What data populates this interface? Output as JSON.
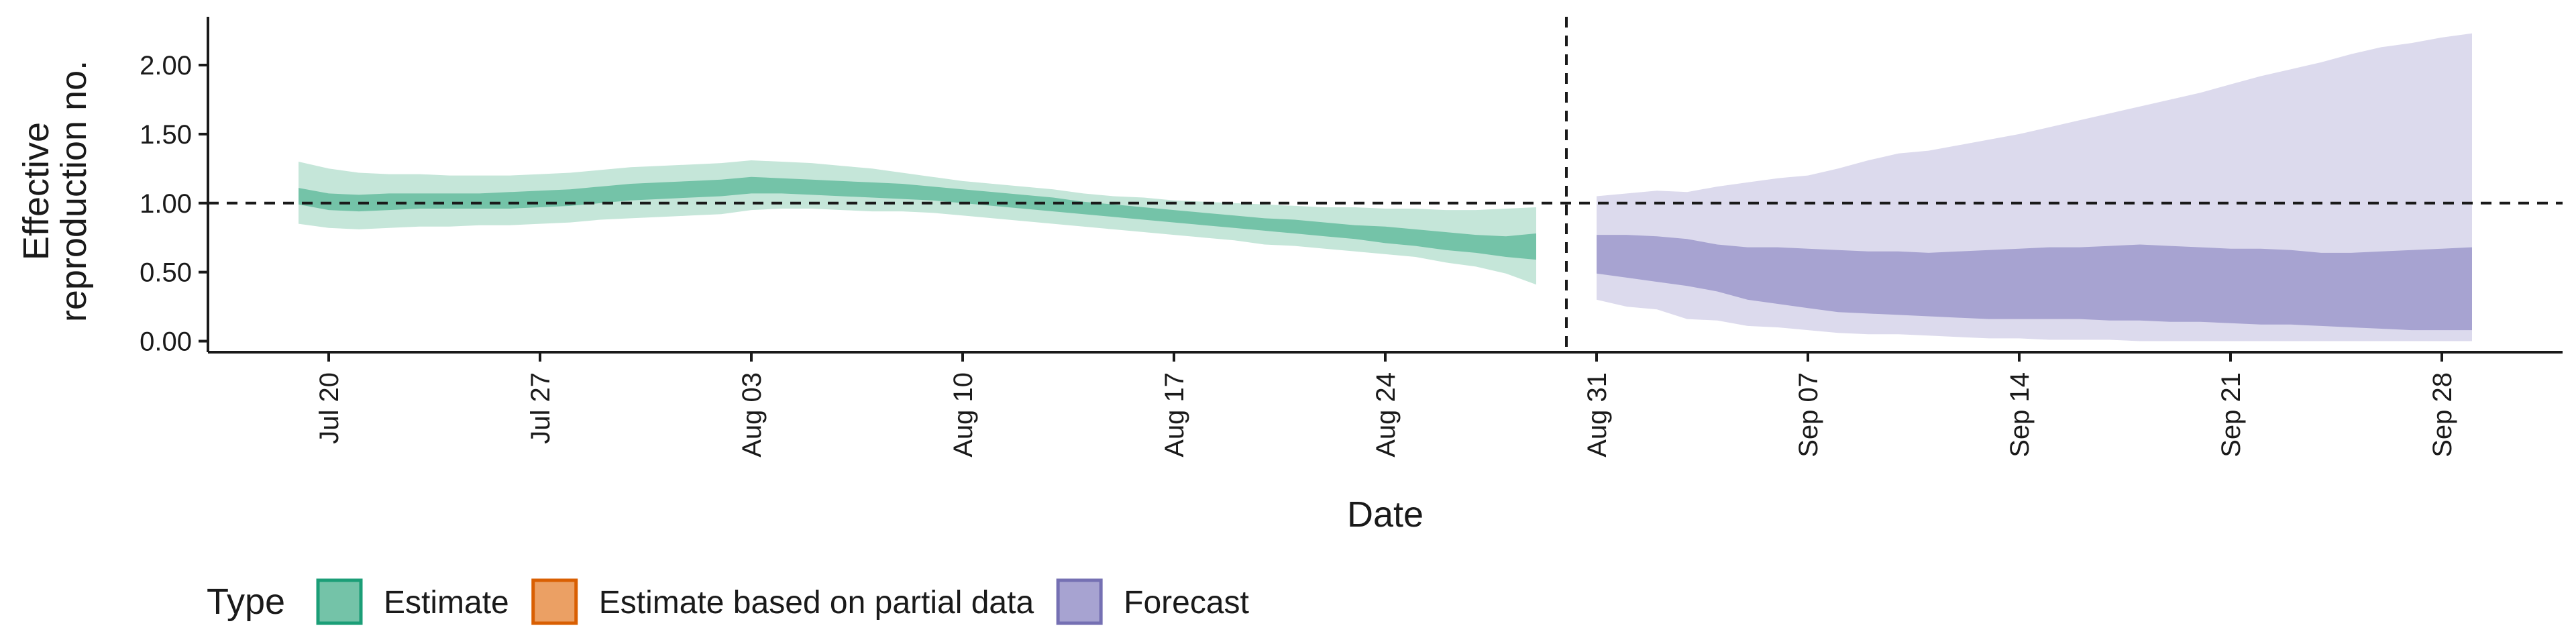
{
  "chart_data": {
    "type": "area",
    "title": "",
    "xlabel": "Date",
    "ylabel": [
      "Effective",
      "reproduction no."
    ],
    "ylim": [
      -0.08,
      2.35
    ],
    "yticks": [
      {
        "value": 0,
        "label": "0.00"
      },
      {
        "value": 0.5,
        "label": "0.50"
      },
      {
        "value": 1.0,
        "label": "1.00"
      },
      {
        "value": 1.5,
        "label": "1.50"
      },
      {
        "value": 2.0,
        "label": "2.00"
      }
    ],
    "xlim": [
      "2020-07-16",
      "2020-10-02"
    ],
    "xticks": [
      {
        "date": "2020-07-20",
        "label": "Jul 20"
      },
      {
        "date": "2020-07-27",
        "label": "Jul 27"
      },
      {
        "date": "2020-08-03",
        "label": "Aug 03"
      },
      {
        "date": "2020-08-10",
        "label": "Aug 10"
      },
      {
        "date": "2020-08-17",
        "label": "Aug 17"
      },
      {
        "date": "2020-08-24",
        "label": "Aug 24"
      },
      {
        "date": "2020-08-31",
        "label": "Aug 31"
      },
      {
        "date": "2020-09-07",
        "label": "Sep 07"
      },
      {
        "date": "2020-09-14",
        "label": "Sep 14"
      },
      {
        "date": "2020-09-21",
        "label": "Sep 21"
      },
      {
        "date": "2020-09-28",
        "label": "Sep 28"
      }
    ],
    "reference_lines": {
      "horizontal_y": 1.0,
      "vertical_date": "2020-08-30"
    },
    "grid": false,
    "legend": {
      "title": "Type",
      "position": "bottom-left",
      "items": [
        {
          "label": "Estimate",
          "fill": "#74c3a8",
          "border": "#1b9e77"
        },
        {
          "label": "Estimate based on partial data",
          "fill": "#eba064",
          "border": "#d95f02"
        },
        {
          "label": "Forecast",
          "fill": "#a7a3d1",
          "border": "#7570b3"
        }
      ]
    },
    "series": [
      {
        "name": "Estimate",
        "color_outer": "#c5e6d9",
        "color_inner": "#74c3a8",
        "x": [
          "2020-07-19",
          "2020-07-20",
          "2020-07-21",
          "2020-07-22",
          "2020-07-23",
          "2020-07-24",
          "2020-07-25",
          "2020-07-26",
          "2020-07-27",
          "2020-07-28",
          "2020-07-29",
          "2020-07-30",
          "2020-07-31",
          "2020-08-01",
          "2020-08-02",
          "2020-08-03",
          "2020-08-04",
          "2020-08-05",
          "2020-08-06",
          "2020-08-07",
          "2020-08-08",
          "2020-08-09",
          "2020-08-10",
          "2020-08-11",
          "2020-08-12",
          "2020-08-13",
          "2020-08-14",
          "2020-08-15",
          "2020-08-16",
          "2020-08-17",
          "2020-08-18",
          "2020-08-19",
          "2020-08-20",
          "2020-08-21",
          "2020-08-22",
          "2020-08-23",
          "2020-08-24",
          "2020-08-25",
          "2020-08-26",
          "2020-08-27",
          "2020-08-28",
          "2020-08-29"
        ],
        "outer_lower": [
          0.85,
          0.82,
          0.81,
          0.82,
          0.83,
          0.83,
          0.84,
          0.84,
          0.85,
          0.86,
          0.88,
          0.89,
          0.9,
          0.91,
          0.92,
          0.95,
          0.96,
          0.96,
          0.95,
          0.94,
          0.94,
          0.93,
          0.91,
          0.89,
          0.87,
          0.85,
          0.83,
          0.81,
          0.79,
          0.77,
          0.75,
          0.73,
          0.7,
          0.69,
          0.67,
          0.65,
          0.63,
          0.61,
          0.57,
          0.54,
          0.49,
          0.41
        ],
        "outer_upper": [
          1.3,
          1.25,
          1.22,
          1.21,
          1.21,
          1.2,
          1.2,
          1.2,
          1.21,
          1.22,
          1.24,
          1.26,
          1.27,
          1.28,
          1.29,
          1.31,
          1.3,
          1.29,
          1.27,
          1.25,
          1.22,
          1.19,
          1.16,
          1.14,
          1.12,
          1.1,
          1.07,
          1.05,
          1.04,
          1.02,
          1.01,
          1.0,
          0.99,
          0.98,
          0.97,
          0.97,
          0.96,
          0.96,
          0.95,
          0.95,
          0.96,
          0.97
        ],
        "inner_lower": [
          0.99,
          0.95,
          0.94,
          0.95,
          0.96,
          0.96,
          0.96,
          0.96,
          0.97,
          0.98,
          1.0,
          1.02,
          1.03,
          1.04,
          1.05,
          1.07,
          1.07,
          1.06,
          1.05,
          1.04,
          1.03,
          1.02,
          1.0,
          0.98,
          0.96,
          0.94,
          0.92,
          0.9,
          0.88,
          0.86,
          0.84,
          0.82,
          0.8,
          0.78,
          0.76,
          0.74,
          0.71,
          0.69,
          0.66,
          0.64,
          0.61,
          0.59
        ],
        "inner_upper": [
          1.11,
          1.07,
          1.06,
          1.07,
          1.07,
          1.07,
          1.07,
          1.08,
          1.09,
          1.1,
          1.12,
          1.14,
          1.15,
          1.16,
          1.17,
          1.19,
          1.18,
          1.17,
          1.16,
          1.15,
          1.14,
          1.12,
          1.1,
          1.08,
          1.06,
          1.04,
          1.01,
          0.99,
          0.97,
          0.95,
          0.93,
          0.91,
          0.89,
          0.88,
          0.86,
          0.84,
          0.83,
          0.81,
          0.79,
          0.77,
          0.76,
          0.78
        ]
      },
      {
        "name": "Forecast",
        "color_outer": "#dcdaed",
        "color_inner": "#a7a3d1",
        "x": [
          "2020-08-31",
          "2020-09-01",
          "2020-09-02",
          "2020-09-03",
          "2020-09-04",
          "2020-09-05",
          "2020-09-06",
          "2020-09-07",
          "2020-09-08",
          "2020-09-09",
          "2020-09-10",
          "2020-09-11",
          "2020-09-12",
          "2020-09-13",
          "2020-09-14",
          "2020-09-15",
          "2020-09-16",
          "2020-09-17",
          "2020-09-18",
          "2020-09-19",
          "2020-09-20",
          "2020-09-21",
          "2020-09-22",
          "2020-09-23",
          "2020-09-24",
          "2020-09-25",
          "2020-09-26",
          "2020-09-27",
          "2020-09-28",
          "2020-09-29"
        ],
        "outer_lower": [
          0.3,
          0.25,
          0.23,
          0.16,
          0.15,
          0.11,
          0.1,
          0.08,
          0.06,
          0.05,
          0.05,
          0.04,
          0.03,
          0.02,
          0.02,
          0.01,
          0.01,
          0.01,
          0.0,
          0.0,
          0.0,
          0.0,
          0.0,
          0.0,
          0.0,
          0.0,
          0.0,
          0.0,
          0.0,
          0.0
        ],
        "outer_upper": [
          1.05,
          1.07,
          1.09,
          1.08,
          1.12,
          1.15,
          1.18,
          1.2,
          1.25,
          1.31,
          1.36,
          1.38,
          1.42,
          1.46,
          1.5,
          1.55,
          1.6,
          1.65,
          1.7,
          1.75,
          1.8,
          1.86,
          1.92,
          1.97,
          2.02,
          2.08,
          2.13,
          2.16,
          2.2,
          2.23
        ],
        "inner_lower": [
          0.49,
          0.46,
          0.43,
          0.4,
          0.36,
          0.3,
          0.27,
          0.24,
          0.21,
          0.2,
          0.19,
          0.18,
          0.17,
          0.16,
          0.16,
          0.16,
          0.16,
          0.15,
          0.15,
          0.14,
          0.14,
          0.13,
          0.12,
          0.12,
          0.11,
          0.1,
          0.09,
          0.08,
          0.08,
          0.08
        ],
        "inner_upper": [
          0.77,
          0.77,
          0.76,
          0.74,
          0.7,
          0.68,
          0.68,
          0.67,
          0.66,
          0.65,
          0.65,
          0.64,
          0.65,
          0.66,
          0.67,
          0.68,
          0.68,
          0.69,
          0.7,
          0.69,
          0.68,
          0.67,
          0.67,
          0.66,
          0.64,
          0.64,
          0.65,
          0.66,
          0.67,
          0.68
        ]
      }
    ]
  }
}
